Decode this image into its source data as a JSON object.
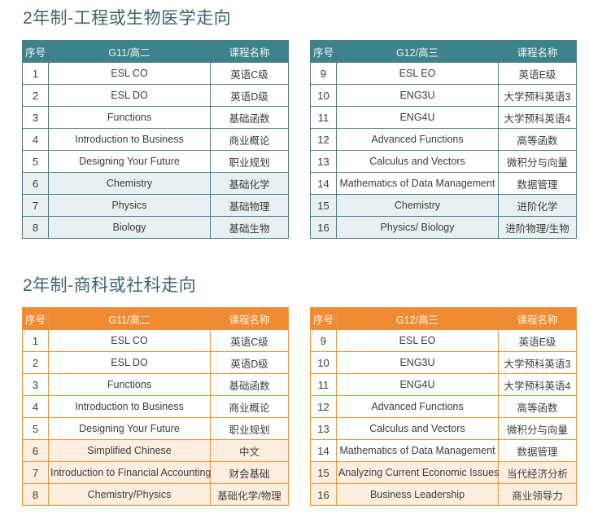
{
  "page": {
    "background": "#ffffff",
    "title_color": "#3d6570"
  },
  "sections": [
    {
      "id": "engineering-biomedical",
      "title": "2年制-工程或生物医学走向",
      "theme": {
        "header_bg": "#3e828b",
        "header_text": "#eef4f4",
        "border": "#4c7a83",
        "tint": "#e8f0f2",
        "cell_text": "#3c3c3c"
      },
      "tables": [
        {
          "columns": [
            "序号",
            "G11/高二",
            "课程名称"
          ],
          "rows": [
            {
              "no": "1",
              "course": "ESL CO",
              "cname": "英语C级",
              "tinted": false
            },
            {
              "no": "2",
              "course": "ESL DO",
              "cname": "英语D级",
              "tinted": false
            },
            {
              "no": "3",
              "course": "Functions",
              "cname": "基础函数",
              "tinted": false
            },
            {
              "no": "4",
              "course": "Introduction to Business",
              "cname": "商业概论",
              "tinted": false
            },
            {
              "no": "5",
              "course": "Designing Your Future",
              "cname": "职业规划",
              "tinted": false
            },
            {
              "no": "6",
              "course": "Chemistry",
              "cname": "基础化学",
              "tinted": true
            },
            {
              "no": "7",
              "course": "Physics",
              "cname": "基础物理",
              "tinted": true
            },
            {
              "no": "8",
              "course": "Biology",
              "cname": "基础生物",
              "tinted": true
            }
          ]
        },
        {
          "columns": [
            "序号",
            "G12/高三",
            "课程名称"
          ],
          "rows": [
            {
              "no": "9",
              "course": "ESL EO",
              "cname": "英语E级",
              "tinted": false
            },
            {
              "no": "10",
              "course": "ENG3U",
              "cname": "大学预科英语3",
              "tinted": false
            },
            {
              "no": "11",
              "course": "ENG4U",
              "cname": "大学预科英语4",
              "tinted": false
            },
            {
              "no": "12",
              "course": "Advanced Functions",
              "cname": "高等函数",
              "tinted": false
            },
            {
              "no": "13",
              "course": "Calculus and Vectors",
              "cname": "微积分与向量",
              "tinted": false
            },
            {
              "no": "14",
              "course": "Mathematics of Data Management",
              "cname": "数据管理",
              "tinted": false
            },
            {
              "no": "15",
              "course": "Chemistry",
              "cname": "进阶化学",
              "tinted": true
            },
            {
              "no": "16",
              "course": "Physics/ Biology",
              "cname": "进阶物理/生物",
              "tinted": true
            }
          ]
        }
      ]
    },
    {
      "id": "business-social-science",
      "title": "2年制-商科或社科走向",
      "theme": {
        "header_bg": "#ef8c33",
        "header_text": "#fdf3e8",
        "border": "#f0913e",
        "tint": "#fdeee0",
        "cell_text": "#3c3c3c"
      },
      "tables": [
        {
          "columns": [
            "序号",
            "G11/高二",
            "课程名称"
          ],
          "rows": [
            {
              "no": "1",
              "course": "ESL CO",
              "cname": "英语C级",
              "tinted": false
            },
            {
              "no": "2",
              "course": "ESL DO",
              "cname": "英语D级",
              "tinted": false
            },
            {
              "no": "3",
              "course": "Functions",
              "cname": "基础函数",
              "tinted": false
            },
            {
              "no": "4",
              "course": "Introduction to Business",
              "cname": "商业概论",
              "tinted": false
            },
            {
              "no": "5",
              "course": "Designing Your Future",
              "cname": "职业规划",
              "tinted": false
            },
            {
              "no": "6",
              "course": "Simplified Chinese",
              "cname": "中文",
              "tinted": true
            },
            {
              "no": "7",
              "course": "Introduction to Financial Accounting",
              "cname": "财会基础",
              "tinted": true
            },
            {
              "no": "8",
              "course": "Chemistry/Physics",
              "cname": "基础化学/物理",
              "tinted": true
            }
          ]
        },
        {
          "columns": [
            "序号",
            "G12/高三",
            "课程名称"
          ],
          "rows": [
            {
              "no": "9",
              "course": "ESL EO",
              "cname": "英语E级",
              "tinted": false
            },
            {
              "no": "10",
              "course": "ENG3U",
              "cname": "大学预科英语3",
              "tinted": false
            },
            {
              "no": "11",
              "course": "ENG4U",
              "cname": "大学预科英语4",
              "tinted": false
            },
            {
              "no": "12",
              "course": "Advanced Functions",
              "cname": "高等函数",
              "tinted": false
            },
            {
              "no": "13",
              "course": "Calculus and Vectors",
              "cname": "微积分与向量",
              "tinted": false
            },
            {
              "no": "14",
              "course": "Mathematics of Data Management",
              "cname": "数据管理",
              "tinted": false
            },
            {
              "no": "15",
              "course": "Analyzing Current Economic Issues",
              "cname": "当代经济分析",
              "tinted": true
            },
            {
              "no": "16",
              "course": "Business Leadership",
              "cname": "商业领导力",
              "tinted": true
            }
          ]
        }
      ]
    }
  ]
}
